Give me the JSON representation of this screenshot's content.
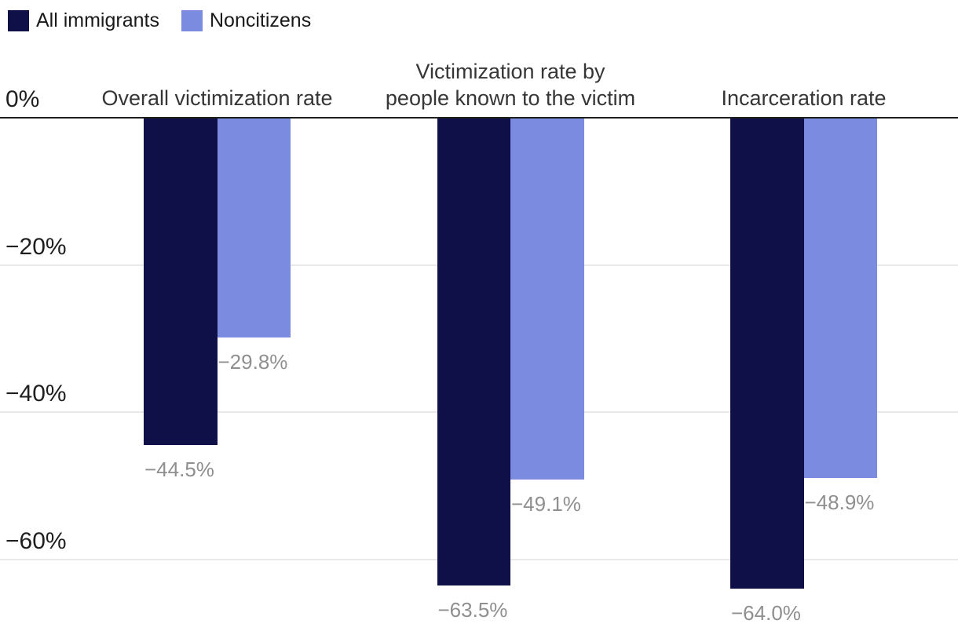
{
  "chart_data": {
    "type": "bar",
    "orientation": "vertical",
    "title": "",
    "legend_position": "top-left",
    "grid": true,
    "legend": [
      {
        "name": "All immigrants",
        "color": "#0f1048"
      },
      {
        "name": "Noncitizens",
        "color": "#7b8be0"
      }
    ],
    "categories": [
      {
        "lines": [
          "Overall victimization rate"
        ]
      },
      {
        "lines": [
          "Victimization rate by",
          "people known to the victim"
        ]
      },
      {
        "lines": [
          "Incarceration rate"
        ]
      }
    ],
    "series": [
      {
        "name": "All immigrants",
        "color": "#0f1048",
        "values": [
          -44.5,
          -63.5,
          -64.0
        ],
        "value_labels": [
          "−44.5%",
          "−63.5%",
          "−64.0%"
        ]
      },
      {
        "name": "Noncitizens",
        "color": "#7b8be0",
        "values": [
          -29.8,
          -49.1,
          -48.9
        ],
        "value_labels": [
          "−29.8%",
          "−49.1%",
          "−48.9%"
        ]
      }
    ],
    "y_axis": {
      "ticks": [
        {
          "label": "0%",
          "value": 0
        },
        {
          "label": "−20%",
          "value": -20
        },
        {
          "label": "−40%",
          "value": -40
        },
        {
          "label": "−60%",
          "value": -60
        }
      ],
      "range": [
        -71,
        0
      ]
    },
    "colors": {
      "value_label": "#8f8f8f",
      "axis_line": "#1f1f1f",
      "gridline": "#e9e9e9",
      "tick_label": "#1f1f1f",
      "category_title": "#363636",
      "legend_text": "#1a1a1a"
    }
  }
}
